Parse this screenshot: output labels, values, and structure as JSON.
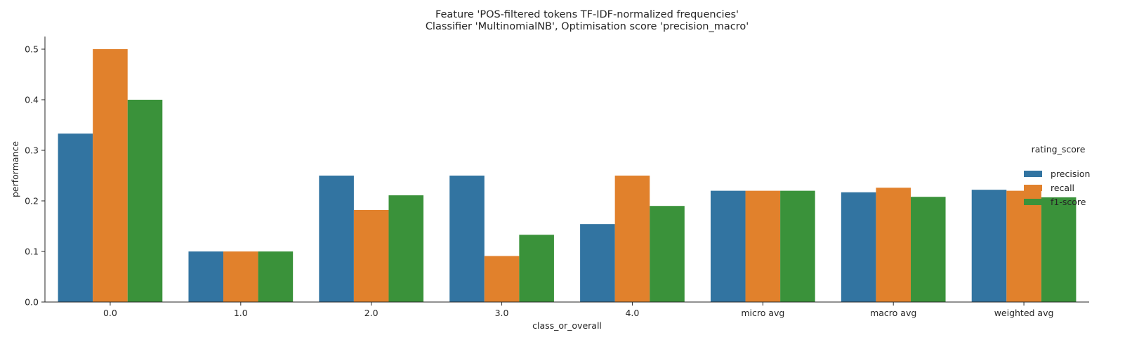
{
  "chart_data": {
    "type": "bar",
    "title_lines": [
      "Feature 'POS-filtered tokens TF-IDF-normalized frequencies'",
      "Classifier 'MultinomialNB', Optimisation score 'precision_macro'"
    ],
    "xlabel": "class_or_overall",
    "ylabel": "performance",
    "ylim": [
      0,
      0.525
    ],
    "yticks": [
      0.0,
      0.1,
      0.2,
      0.3,
      0.4,
      0.5
    ],
    "ytick_labels": [
      "0.0",
      "0.1",
      "0.2",
      "0.3",
      "0.4",
      "0.5"
    ],
    "grid": false,
    "legend_position": "center-right",
    "legend_title": "rating_score",
    "categories": [
      "0.0",
      "1.0",
      "2.0",
      "3.0",
      "4.0",
      "micro avg",
      "macro avg",
      "weighted avg"
    ],
    "series": [
      {
        "name": "precision",
        "color": "#3274a1",
        "values": [
          0.333,
          0.1,
          0.25,
          0.25,
          0.154,
          0.22,
          0.217,
          0.222
        ]
      },
      {
        "name": "recall",
        "color": "#e1812c",
        "values": [
          0.5,
          0.1,
          0.182,
          0.091,
          0.25,
          0.22,
          0.226,
          0.22
        ]
      },
      {
        "name": "f1-score",
        "color": "#3a923a",
        "values": [
          0.4,
          0.1,
          0.211,
          0.133,
          0.19,
          0.22,
          0.208,
          0.207
        ]
      }
    ]
  }
}
